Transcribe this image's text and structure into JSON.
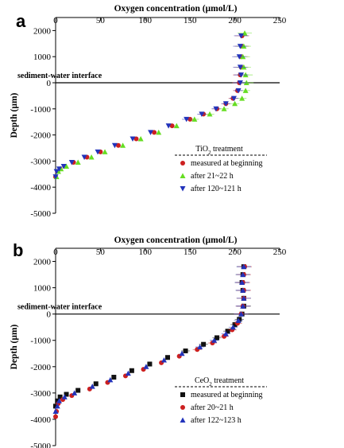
{
  "chart_data": [
    {
      "panel": "a",
      "type": "scatter",
      "xlabel": "Oxygen concentration (µmol/L)",
      "ylabel": "Depth (µm)",
      "xlim": [
        0,
        250
      ],
      "ylim": [
        -5000,
        2500
      ],
      "x_ticks": [
        "0",
        "50",
        "100",
        "150",
        "200",
        "250"
      ],
      "y_ticks": [
        "2000",
        "1000",
        "0",
        "-1000",
        "-2000",
        "-3000",
        "-4000",
        "-5000"
      ],
      "annotation": "sediment-water interface",
      "legend_title": "TiO2 treatment",
      "legend_position": "lower-right",
      "series": [
        {
          "name": "measured at beginning",
          "color": "#cc2020",
          "marker": "circle",
          "x": [
            0,
            2,
            5,
            10,
            20,
            35,
            50,
            70,
            90,
            110,
            130,
            150,
            165,
            180,
            190,
            198,
            203,
            205,
            206,
            207,
            207,
            208,
            208
          ],
          "y": [
            -3600,
            -3400,
            -3300,
            -3200,
            -3050,
            -2850,
            -2650,
            -2400,
            -2150,
            -1900,
            -1650,
            -1400,
            -1200,
            -1000,
            -800,
            -600,
            -300,
            0,
            300,
            600,
            1000,
            1400,
            1800
          ]
        },
        {
          "name": "after 21~22 h",
          "color": "#66dd22",
          "marker": "triangle-up",
          "x": [
            1,
            3,
            6,
            12,
            25,
            40,
            55,
            75,
            95,
            115,
            135,
            155,
            172,
            188,
            200,
            208,
            212,
            213,
            212,
            210,
            209,
            210,
            211
          ],
          "y": [
            -3600,
            -3400,
            -3300,
            -3200,
            -3050,
            -2850,
            -2650,
            -2400,
            -2150,
            -1900,
            -1650,
            -1400,
            -1200,
            -1000,
            -800,
            -600,
            -300,
            0,
            300,
            600,
            1000,
            1400,
            1900
          ]
        },
        {
          "name": "after 120~121 h",
          "color": "#2233bb",
          "marker": "triangle-down",
          "x": [
            0,
            1,
            4,
            9,
            18,
            32,
            47,
            66,
            86,
            106,
            126,
            146,
            163,
            179,
            190,
            199,
            204,
            206,
            207,
            206,
            205,
            206,
            207
          ],
          "y": [
            -3600,
            -3400,
            -3300,
            -3200,
            -3050,
            -2850,
            -2650,
            -2400,
            -2150,
            -1900,
            -1650,
            -1400,
            -1200,
            -1000,
            -800,
            -600,
            -300,
            0,
            300,
            600,
            1000,
            1400,
            1800
          ]
        }
      ]
    },
    {
      "panel": "b",
      "type": "scatter",
      "xlabel": "Oxygen concentration (µmol/L)",
      "ylabel": "Depth (µm)",
      "xlim": [
        0,
        250
      ],
      "ylim": [
        -5000,
        2500
      ],
      "x_ticks": [
        "0",
        "50",
        "100",
        "150",
        "200",
        "250"
      ],
      "y_ticks": [
        "2000",
        "1000",
        "0",
        "-1000",
        "-2000",
        "-3000",
        "-4000",
        "-5000"
      ],
      "annotation": "sediment-water interface",
      "legend_title": "CeO2 treatment",
      "legend_position": "lower-right",
      "series": [
        {
          "name": "measured at beginning",
          "color": "#111111",
          "marker": "square",
          "x": [
            0,
            2,
            5,
            12,
            25,
            45,
            65,
            85,
            105,
            125,
            145,
            165,
            180,
            192,
            200,
            205,
            208,
            210,
            210,
            209,
            208,
            209,
            210
          ],
          "y": [
            -3500,
            -3300,
            -3150,
            -3050,
            -2900,
            -2650,
            -2400,
            -2150,
            -1900,
            -1650,
            -1400,
            -1150,
            -900,
            -650,
            -400,
            -200,
            0,
            300,
            600,
            900,
            1200,
            1500,
            1800
          ]
        },
        {
          "name": "after 20~21 h",
          "color": "#cc2020",
          "marker": "circle",
          "x": [
            0,
            1,
            3,
            8,
            18,
            38,
            58,
            78,
            98,
            118,
            138,
            158,
            175,
            188,
            197,
            203,
            207,
            209,
            210,
            210,
            209,
            210,
            211
          ],
          "y": [
            -3900,
            -3700,
            -3400,
            -3250,
            -3100,
            -2850,
            -2600,
            -2350,
            -2100,
            -1850,
            -1600,
            -1350,
            -1100,
            -850,
            -600,
            -350,
            0,
            300,
            600,
            900,
            1200,
            1500,
            1800
          ]
        },
        {
          "name": "after 122~123 h",
          "color": "#2233bb",
          "marker": "triangle-up",
          "x": [
            0,
            2,
            4,
            10,
            21,
            41,
            61,
            81,
            101,
            121,
            141,
            161,
            177,
            190,
            198,
            204,
            207,
            209,
            210,
            209,
            208,
            209,
            210
          ],
          "y": [
            -3700,
            -3500,
            -3300,
            -3150,
            -3000,
            -2750,
            -2500,
            -2250,
            -2000,
            -1750,
            -1500,
            -1250,
            -1000,
            -750,
            -500,
            -250,
            0,
            300,
            600,
            900,
            1200,
            1500,
            1800
          ]
        }
      ]
    }
  ]
}
